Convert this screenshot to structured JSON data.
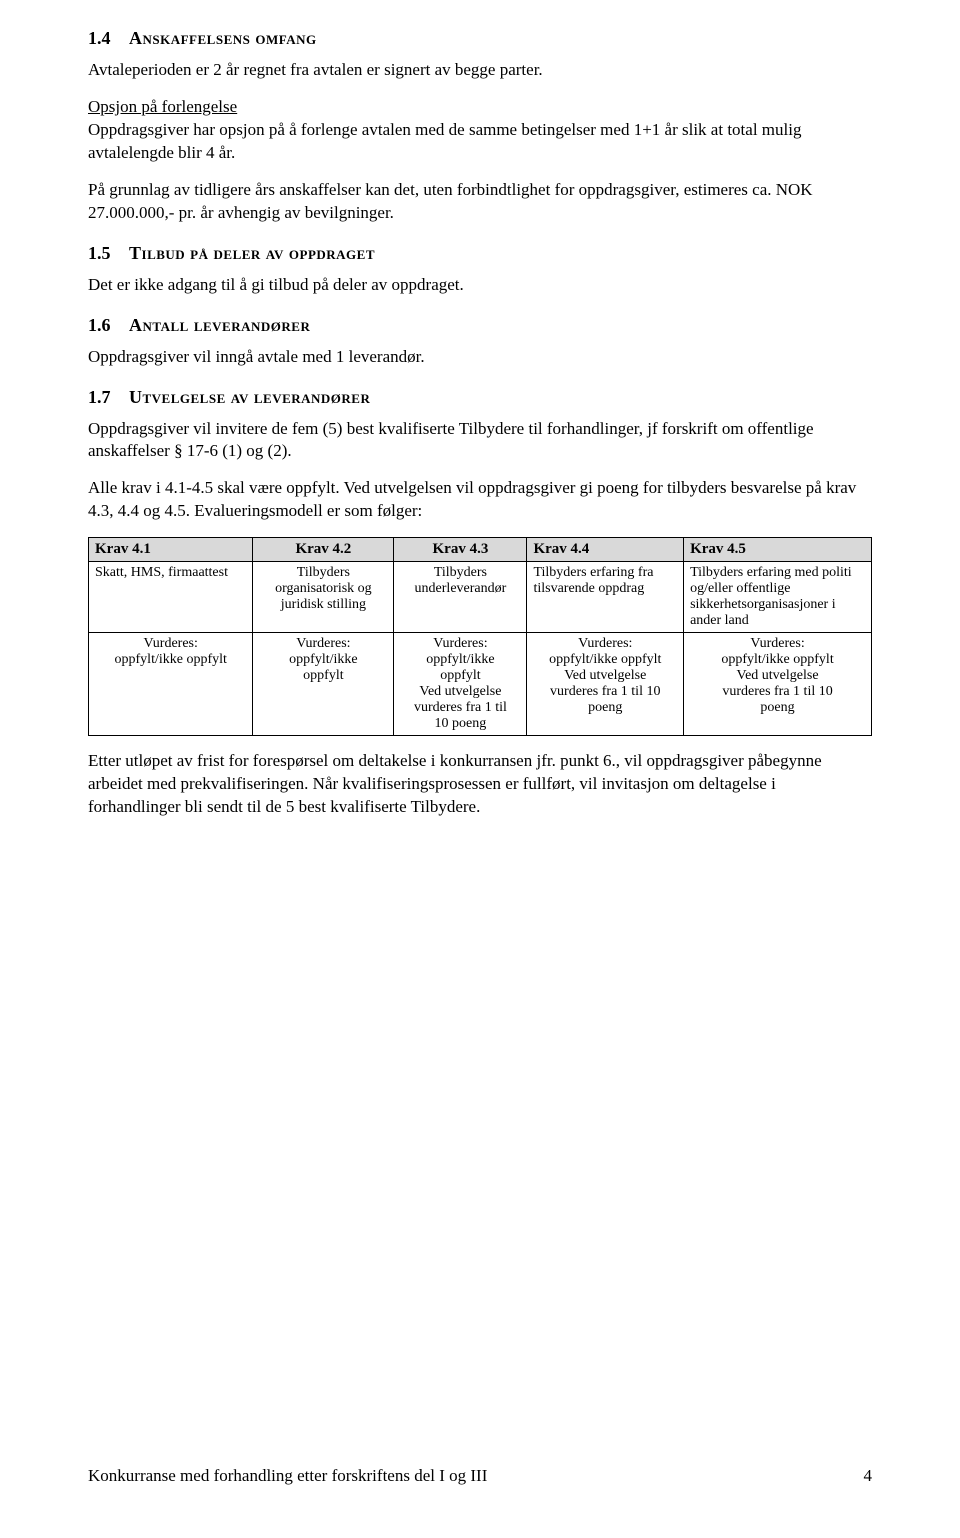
{
  "s14": {
    "num": "1.4",
    "title": "Anskaffelsens omfang",
    "p1": "Avtaleperioden er 2 år regnet fra avtalen er signert av begge parter.",
    "p2a": "Opsjon på forlengelse",
    "p2b": "Oppdragsgiver har opsjon på å forlenge avtalen med de samme betingelser med 1+1 år slik at total mulig avtalelengde blir 4 år.",
    "p3": "På grunnlag av tidligere års anskaffelser kan det, uten forbindtlighet for oppdragsgiver, estimeres ca. NOK 27.000.000,- pr. år avhengig av bevilgninger."
  },
  "s15": {
    "num": "1.5",
    "title": "Tilbud på deler av oppdraget",
    "p1": "Det er ikke adgang til å gi tilbud på deler av oppdraget."
  },
  "s16": {
    "num": "1.6",
    "title": "Antall leverandører",
    "p1": "Oppdragsgiver vil inngå avtale med 1 leverandør."
  },
  "s17": {
    "num": "1.7",
    "title": "Utvelgelse av leverandører",
    "p1": "Oppdragsgiver vil invitere de fem (5) best kvalifiserte Tilbydere til forhandlinger, jf forskrift om offentlige anskaffelser § 17-6 (1) og (2).",
    "p2": "Alle krav i 4.1-4.5 skal være oppfylt. Ved utvelgelsen vil oppdragsgiver gi poeng for tilbyders besvarelse på krav 4.3, 4.4 og 4.5. Evalueringsmodell er som følger:"
  },
  "table": {
    "head": [
      "Krav 4.1",
      "Krav 4.2",
      "Krav 4.3",
      "Krav 4.4",
      "Krav 4.5"
    ],
    "r1": [
      "Skatt, HMS, firmaattest",
      "Tilbyders organisatorisk og juridisk stilling",
      "Tilbyders underleverandør",
      "Tilbyders erfaring fra tilsvarende oppdrag",
      "Tilbyders erfaring med politi og/eller offentlige sikkerhetsorganisasjoner i ander land"
    ],
    "r2": [
      "Vurderes:\noppfylt/ikke oppfylt",
      "Vurderes:\noppfylt/ikke\noppfylt",
      "Vurderes:\noppfylt/ikke\noppfylt\nVed utvelgelse\nvurderes fra 1 til\n10 poeng",
      "Vurderes:\noppfylt/ikke oppfylt\nVed utvelgelse\nvurderes fra 1 til 10\npoeng",
      "Vurderes:\noppfylt/ikke oppfylt\nVed utvelgelse\nvurderes fra 1 til 10\npoeng"
    ]
  },
  "after_table": "Etter utløpet av frist for forespørsel om deltakelse i konkurransen jfr. punkt 6., vil oppdragsgiver påbegynne arbeidet med prekvalifiseringen.  Når kvalifiseringsprosessen er fullført, vil invitasjon om deltagelse i forhandlinger bli sendt til de 5 best kvalifiserte Tilbydere.",
  "footer": {
    "text": "Konkurranse med forhandling etter forskriftens del I og III",
    "page": "4"
  }
}
